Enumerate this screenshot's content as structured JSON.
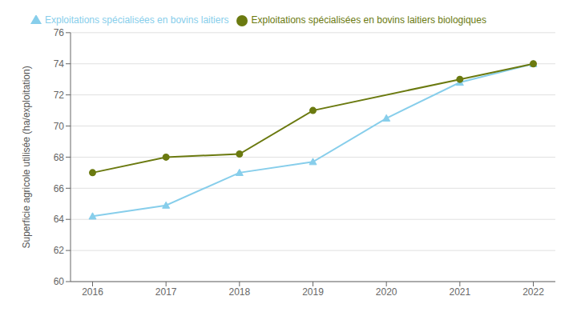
{
  "chart_data": {
    "type": "line",
    "y_label": "Superficie agricole utilisée (ha/exploitation)",
    "series": [
      {
        "name": "Exploitations spécialisées en bovins laitiers",
        "color": "#87ceeb",
        "marker": "triangle",
        "x": [
          2016,
          2017,
          2018,
          2019,
          2020,
          2021,
          2022
        ],
        "values": [
          64.2,
          64.9,
          67.0,
          67.7,
          70.5,
          72.8,
          74.0
        ]
      },
      {
        "name": "Exploitations spécialisées en bovins laitiers biologiques",
        "color": "#6b7a10",
        "marker": "circle",
        "x": [
          2016,
          2017,
          2018,
          2019,
          2021,
          2022
        ],
        "values": [
          67.0,
          68.0,
          68.2,
          71.0,
          73.0,
          74.0
        ]
      }
    ],
    "xlim": [
      2015.7,
      2022.3
    ],
    "xticks": [
      2016,
      2017,
      2018,
      2019,
      2020,
      2021,
      2022
    ],
    "ylim": [
      60,
      76
    ],
    "yticks": [
      60,
      62,
      64,
      66,
      68,
      70,
      72,
      74,
      76
    ],
    "grid": "y",
    "legend": "upper left"
  }
}
